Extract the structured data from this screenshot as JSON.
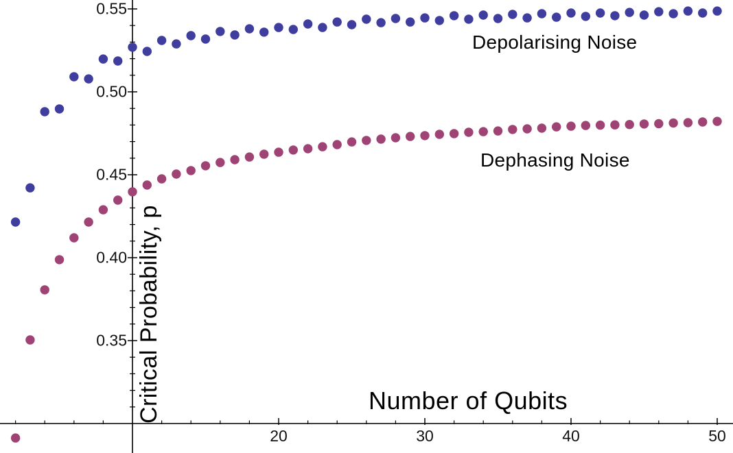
{
  "chart_data": {
    "type": "scatter",
    "title": "",
    "xlabel": "Number of Qubits",
    "ylabel": "Critical Probability, p",
    "background_color": "#ffffff",
    "axis_color": "#000000",
    "grid": false,
    "legend_position": "inline-annotations",
    "x_axis": {
      "major_ticks": [
        20,
        30,
        40,
        50
      ],
      "major_tick_labels": [
        "20",
        "30",
        "40",
        "50"
      ],
      "minor_tick_step": 2,
      "minor_tick_min": 2,
      "minor_tick_max": 50,
      "axes_origin": 10,
      "visible_range": [
        1,
        51.1
      ]
    },
    "y_axis": {
      "major_ticks": [
        0.35,
        0.4,
        0.45,
        0.5,
        0.55
      ],
      "major_tick_labels": [
        "0.35",
        "0.40",
        "0.45",
        "0.50",
        "0.55"
      ],
      "minor_tick_step": 0.01,
      "minor_tick_min": 0.31,
      "minor_tick_max": 0.55,
      "axes_origin": 0.3,
      "visible_range": [
        0.282,
        0.5554
      ]
    },
    "series": [
      {
        "name": "Depolarising Noise",
        "color": "#3F3D9E",
        "points": [
          [
            2,
            0.4215
          ],
          [
            3,
            0.4421
          ],
          [
            4,
            0.488
          ],
          [
            5,
            0.4897
          ],
          [
            6,
            0.5091
          ],
          [
            7,
            0.5078
          ],
          [
            8,
            0.5198
          ],
          [
            9,
            0.5186
          ],
          [
            10,
            0.5269
          ],
          [
            11,
            0.5244
          ],
          [
            12,
            0.531
          ],
          [
            13,
            0.5289
          ],
          [
            14,
            0.5339
          ],
          [
            15,
            0.5318
          ],
          [
            16,
            0.5364
          ],
          [
            17,
            0.5343
          ],
          [
            18,
            0.538
          ],
          [
            19,
            0.536
          ],
          [
            20,
            0.5388
          ],
          [
            21,
            0.5376
          ],
          [
            22,
            0.5409
          ],
          [
            23,
            0.5388
          ],
          [
            24,
            0.5421
          ],
          [
            25,
            0.5405
          ],
          [
            26,
            0.5438
          ],
          [
            27,
            0.5417
          ],
          [
            28,
            0.5442
          ],
          [
            29,
            0.5421
          ],
          [
            30,
            0.5446
          ],
          [
            31,
            0.543
          ],
          [
            32,
            0.5459
          ],
          [
            33,
            0.5438
          ],
          [
            34,
            0.5463
          ],
          [
            35,
            0.5442
          ],
          [
            36,
            0.5467
          ],
          [
            37,
            0.5446
          ],
          [
            38,
            0.5471
          ],
          [
            39,
            0.545
          ],
          [
            40,
            0.5475
          ],
          [
            41,
            0.5455
          ],
          [
            42,
            0.5475
          ],
          [
            43,
            0.5459
          ],
          [
            44,
            0.5479
          ],
          [
            45,
            0.5463
          ],
          [
            46,
            0.5483
          ],
          [
            47,
            0.5471
          ],
          [
            48,
            0.5487
          ],
          [
            49,
            0.5475
          ],
          [
            50,
            0.5487
          ]
        ]
      },
      {
        "name": "Dephasing Noise",
        "color": "#9E4374",
        "points": [
          [
            2,
            0.2913
          ],
          [
            3,
            0.3504
          ],
          [
            4,
            0.3806
          ],
          [
            5,
            0.3988
          ],
          [
            6,
            0.412
          ],
          [
            7,
            0.4215
          ],
          [
            8,
            0.4289
          ],
          [
            9,
            0.4347
          ],
          [
            10,
            0.4397
          ],
          [
            11,
            0.4438
          ],
          [
            12,
            0.4475
          ],
          [
            13,
            0.4504
          ],
          [
            14,
            0.4525
          ],
          [
            15,
            0.4554
          ],
          [
            16,
            0.4574
          ],
          [
            17,
            0.4591
          ],
          [
            18,
            0.4607
          ],
          [
            19,
            0.4624
          ],
          [
            20,
            0.4636
          ],
          [
            21,
            0.4649
          ],
          [
            22,
            0.4657
          ],
          [
            23,
            0.4669
          ],
          [
            24,
            0.4682
          ],
          [
            25,
            0.4698
          ],
          [
            26,
            0.4707
          ],
          [
            27,
            0.4715
          ],
          [
            28,
            0.4723
          ],
          [
            29,
            0.4731
          ],
          [
            30,
            0.4736
          ],
          [
            31,
            0.4744
          ],
          [
            32,
            0.4748
          ],
          [
            33,
            0.4756
          ],
          [
            34,
            0.476
          ],
          [
            35,
            0.4764
          ],
          [
            36,
            0.4773
          ],
          [
            37,
            0.4777
          ],
          [
            38,
            0.4781
          ],
          [
            39,
            0.4789
          ],
          [
            40,
            0.4793
          ],
          [
            41,
            0.4797
          ],
          [
            42,
            0.4799
          ],
          [
            43,
            0.4801
          ],
          [
            44,
            0.4803
          ],
          [
            45,
            0.4806
          ],
          [
            46,
            0.4808
          ],
          [
            47,
            0.4812
          ],
          [
            48,
            0.4814
          ],
          [
            49,
            0.4818
          ],
          [
            50,
            0.4822
          ]
        ]
      }
    ]
  }
}
